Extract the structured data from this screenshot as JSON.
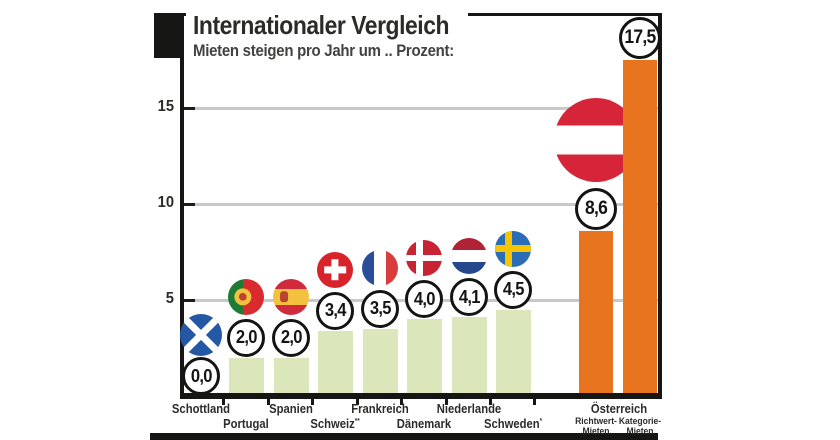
{
  "title": "Internationaler Vergleich",
  "subtitle": "Mieten steigen pro Jahr um .. Prozent:",
  "colors": {
    "bar_green": "#dbe6bb",
    "bar_orange": "#e97420",
    "grid_gray": "#c9c9c9",
    "frame_black": "#161615",
    "text_dark": "#2b2b2a"
  },
  "chart_data": {
    "type": "bar",
    "title": "Internationaler Vergleich",
    "subtitle": "Mieten steigen pro Jahr um .. Prozent:",
    "ylabel": "Prozent",
    "ylim": [
      0,
      20
    ],
    "y_ticks": [
      5,
      10,
      15
    ],
    "grid": "horizontal",
    "categories": [
      {
        "label": "Schottland",
        "flag": "scotland",
        "value": 0.0,
        "display": "0,0",
        "row": 1
      },
      {
        "label": "Portugal",
        "flag": "portugal",
        "value": 2.0,
        "display": "2,0",
        "row": 2
      },
      {
        "label": "Spanien",
        "flag": "spain",
        "value": 2.0,
        "display": "2,0",
        "row": 1
      },
      {
        "label": "Schweiz",
        "footnote": "**",
        "flag": "switzerland",
        "value": 3.4,
        "display": "3,4",
        "row": 2
      },
      {
        "label": "Frankreich",
        "flag": "france",
        "value": 3.5,
        "display": "3,5",
        "row": 1
      },
      {
        "label": "Dänemark",
        "flag": "denmark",
        "value": 4.0,
        "display": "4,0",
        "row": 2
      },
      {
        "label": "Niederlande",
        "flag": "netherlands",
        "value": 4.1,
        "display": "4,1",
        "row": 1
      },
      {
        "label": "Schweden",
        "footnote": "*",
        "flag": "sweden",
        "value": 4.5,
        "display": "4,5",
        "row": 2
      },
      {
        "label": "Österreich",
        "flag": "austria",
        "row": 1,
        "group": [
          {
            "label": "Richtwert-Mieten",
            "value": 8.6,
            "display": "8,6"
          },
          {
            "label": "Kategorie-Mieten",
            "value": 17.5,
            "display": "17,5"
          }
        ]
      }
    ]
  }
}
